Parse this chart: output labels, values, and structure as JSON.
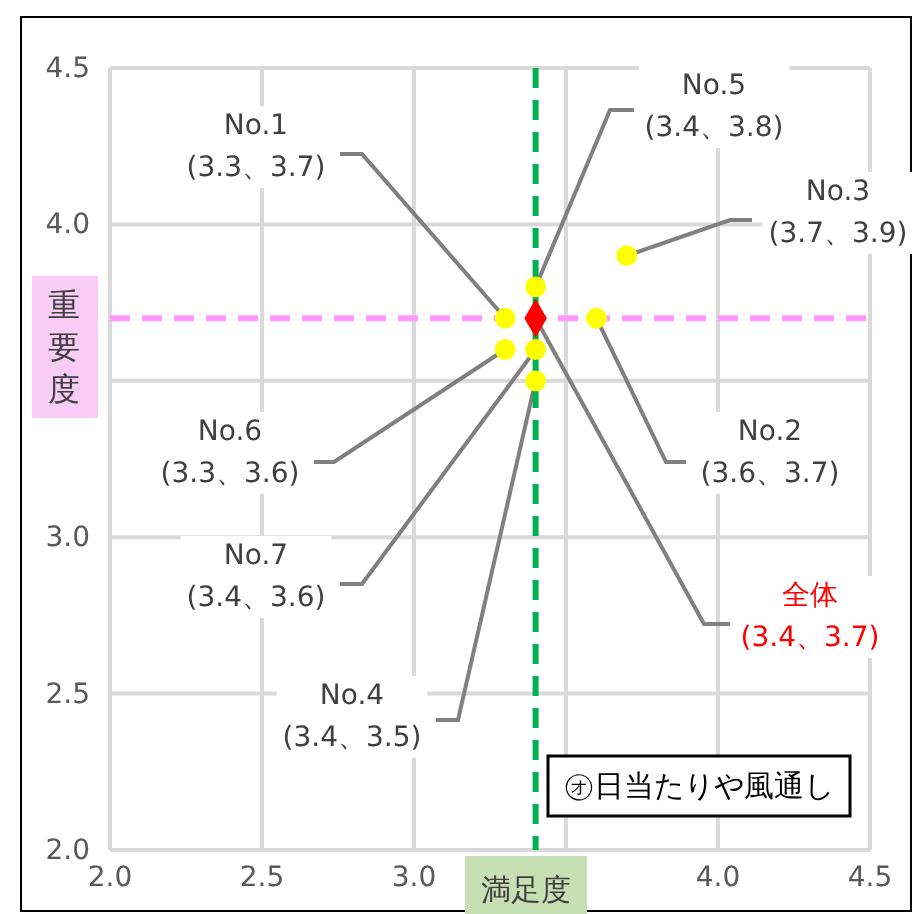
{
  "chart_data": {
    "type": "scatter",
    "xlabel": "満足度",
    "ylabel": "重要度",
    "xlim": [
      2,
      4.5
    ],
    "ylim": [
      2,
      4.5
    ],
    "xticks": [
      {
        "value": 2,
        "label": "2.0"
      },
      {
        "value": 2.5,
        "label": "2.5"
      },
      {
        "value": 3,
        "label": "3.0"
      },
      {
        "value": 3.5,
        "label": null
      },
      {
        "value": 4,
        "label": "4.0"
      },
      {
        "value": 4.5,
        "label": "4.5"
      }
    ],
    "yticks": [
      {
        "value": 2,
        "label": "2.0"
      },
      {
        "value": 2.5,
        "label": "2.5"
      },
      {
        "value": 3,
        "label": "3.0"
      },
      {
        "value": 3.5,
        "label": null
      },
      {
        "value": 4,
        "label": "4.0"
      },
      {
        "value": 4.5,
        "label": "4.5"
      }
    ],
    "grid": true,
    "series": [
      {
        "marker": "circle",
        "color": "#ffff00",
        "x": [
          3.3,
          3.6,
          3.7,
          3.4,
          3.4,
          3.3,
          3.4
        ],
        "values": [
          3.7,
          3.7,
          3.9,
          3.5,
          3.8,
          3.6,
          3.6
        ],
        "value_labels": [
          "No.1\n(3.3、3.7)",
          "No.2\n(3.6、3.7)",
          "No.3\n(3.7、3.9)",
          "No.4\n(3.4、3.5)",
          "No.5\n(3.4、3.8)",
          "No.6\n(3.3、3.6)",
          "No.7\n(3.4、3.6)"
        ]
      },
      {
        "marker": "diamond",
        "color": "#ff0000",
        "x": [
          3.4
        ],
        "values": [
          3.7
        ],
        "value_labels": [
          "全体\n(3.4、3.7)"
        ]
      }
    ],
    "ref_lines": [
      {
        "axis": "x",
        "value": 3.4,
        "color": "#00b050",
        "line_style": "dashed"
      },
      {
        "axis": "y",
        "value": 3.7,
        "color": "#ff99ff",
        "line_style": "dashed"
      }
    ],
    "annotations": [
      "㋔日当たりや風通し"
    ]
  }
}
